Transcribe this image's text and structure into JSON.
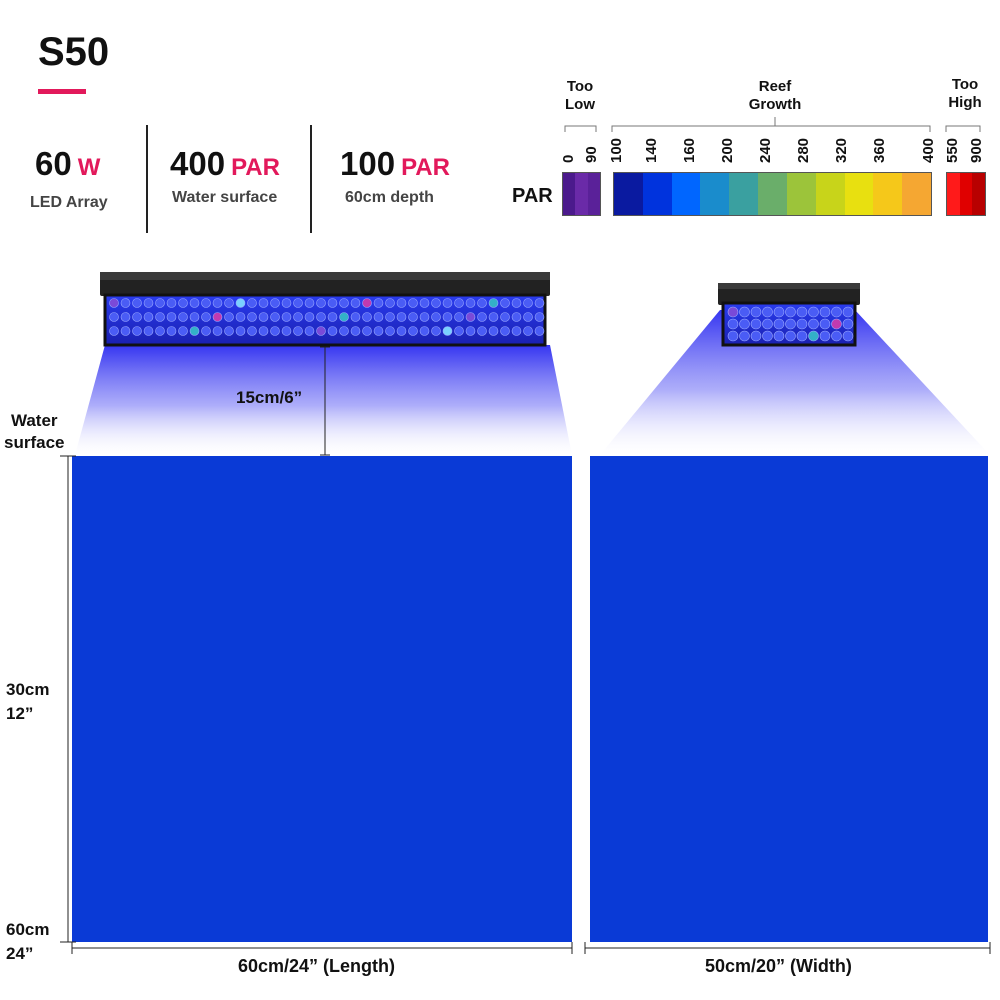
{
  "product": {
    "title": "S50"
  },
  "stats": [
    {
      "value": "60",
      "unit": "W",
      "desc": "LED Array"
    },
    {
      "value": "400",
      "unit": "PAR",
      "desc": "Water surface"
    },
    {
      "value": "100",
      "unit": "PAR",
      "desc": "60cm depth"
    }
  ],
  "legend": {
    "label": "PAR",
    "too_low": "Too\nLow",
    "reef_growth": "Reef\nGrowth",
    "too_high": "Too\nHigh",
    "low_ticks": [
      "0",
      "90"
    ],
    "reef_ticks": [
      "100",
      "140",
      "160",
      "200",
      "240",
      "280",
      "320",
      "360",
      "400"
    ],
    "high_ticks": [
      "550",
      "900"
    ],
    "colors": {
      "too_low": [
        "#4b1a8c",
        "#6a2aa8",
        "#5a2199"
      ],
      "reef": [
        "#0a1aa0",
        "#0033dd",
        "#0066ff",
        "#1a8ccc",
        "#3aa0a0",
        "#6aae6a",
        "#9cc43a",
        "#c8d41a",
        "#e8e010",
        "#f5c81a",
        "#f5a732"
      ],
      "too_high": [
        "#ff1a1a",
        "#e00000",
        "#b80000"
      ]
    }
  },
  "diagram": {
    "distance_label": "15cm/6”",
    "water_surface": "Water\nsurface",
    "depth_30": "30cm\n12”",
    "depth_60": "60cm\n24”",
    "length_label": "60cm/24”  (Length)",
    "width_label": "50cm/20”  (Width)"
  }
}
